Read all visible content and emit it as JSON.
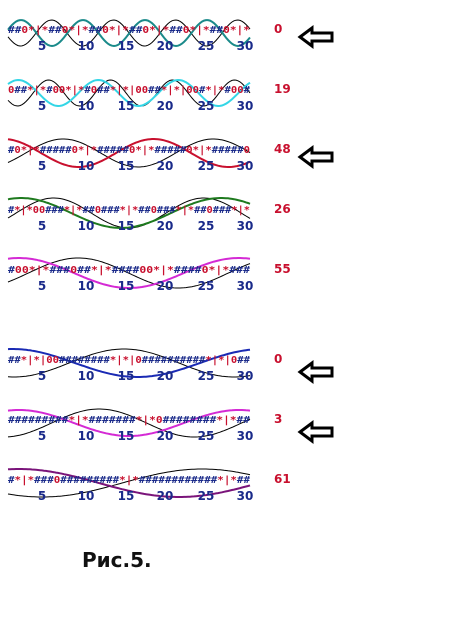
{
  "caption": "Рис.5.",
  "ticks": [
    "5",
    "10",
    "15",
    "20",
    "25",
    "30"
  ],
  "colors": {
    "seq_base": "#1a2a8a",
    "seq_highlight": "#c8102e",
    "score": "#c8102e",
    "ref_wave": "#000000"
  },
  "rows": [
    {
      "seq": "##0*|*##0*|*##0*|*##0*|*##0*|*##0*|*",
      "score": "0",
      "wave_color": "#1a8a8a",
      "arrow": true
    },
    {
      "seq": "0##*|*#00*|*#0##*|*|00##*|*|00#*|*#00#",
      "score": "19",
      "wave_color": "#33d6e6",
      "arrow": false
    },
    {
      "seq": "#0*|*#####0*|*#####0*|*#####0*|*#####0",
      "score": "48",
      "wave_color": "#c8102e",
      "arrow": true
    },
    {
      "seq": "#*|*00###*|*##0###*|*##0###*|*##0###*|*",
      "score": "26",
      "wave_color": "#1e7a1e",
      "arrow": false
    },
    {
      "seq": "#00*|*###0##*|*####00*|*####0*|*###",
      "score": "55",
      "wave_color": "#d42ad4",
      "arrow": false
    },
    {
      "seq": "##*|*|00########*|*|0##########*|*|0##",
      "score": "0",
      "wave_color": "#1a2ab4",
      "arrow": true
    },
    {
      "seq": "#########*|*#######*|*0########*|*##",
      "score": "3",
      "wave_color": "#d42ad4",
      "arrow": true
    },
    {
      "seq": "#*|*###0#########*|*############*|*##",
      "score": "61",
      "wave_color": "#7a147a",
      "arrow": false
    }
  ]
}
